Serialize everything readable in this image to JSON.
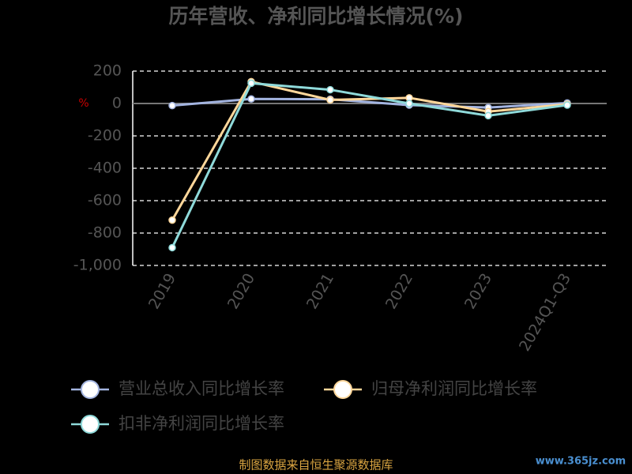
{
  "chart_data": {
    "type": "line",
    "title": "历年营收、净利同比增长情况(%)",
    "y_label": "%",
    "categories": [
      "2019",
      "2020",
      "2021",
      "2022",
      "2023",
      "2024Q1-Q3"
    ],
    "series": [
      {
        "name": "营业总收入同比增长率",
        "color": "#a3b4e0",
        "values": [
          -13,
          28,
          26,
          -10,
          -25,
          3
        ]
      },
      {
        "name": "归母净利润同比增长率",
        "color": "#ffd79a",
        "values": [
          -720,
          135,
          22,
          35,
          -50,
          -5
        ]
      },
      {
        "name": "扣非净利润同比增长率",
        "color": "#8fdada",
        "values": [
          -890,
          125,
          85,
          0,
          -75,
          -10
        ]
      }
    ],
    "ylim": [
      -1000,
      200
    ],
    "yticks": [
      200,
      0,
      -200,
      -400,
      -600,
      -800,
      {
        "value": -1000,
        "label": "-1,000"
      }
    ],
    "grid": true,
    "legend": "bottom",
    "source": "制图数据来自恒生聚源数据库",
    "watermark": "www.365jz.com"
  }
}
